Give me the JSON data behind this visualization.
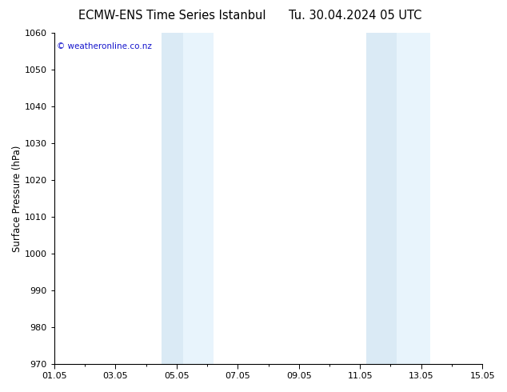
{
  "title_left": "ECMW-ENS Time Series Istanbul",
  "title_right": "Tu. 30.04.2024 05 UTC",
  "ylabel": "Surface Pressure (hPa)",
  "ylim": [
    970,
    1060
  ],
  "yticks": [
    970,
    980,
    990,
    1000,
    1010,
    1020,
    1030,
    1040,
    1050,
    1060
  ],
  "xmin_days": 0,
  "xmax_days": 14,
  "xtick_labels": [
    "01.05",
    "03.05",
    "05.05",
    "07.05",
    "09.05",
    "11.05",
    "13.05",
    "15.05"
  ],
  "xtick_positions": [
    0,
    2,
    4,
    6,
    8,
    10,
    12,
    14
  ],
  "shaded_regions": [
    {
      "xstart": 3.5,
      "xend": 4.2,
      "color": "#daeaf5"
    },
    {
      "xstart": 4.2,
      "xend": 5.2,
      "color": "#e8f4fc"
    },
    {
      "xstart": 10.2,
      "xend": 11.2,
      "color": "#daeaf5"
    },
    {
      "xstart": 11.2,
      "xend": 12.3,
      "color": "#e8f4fc"
    }
  ],
  "watermark": "© weatheronline.co.nz",
  "watermark_color": "#1515cc",
  "bg_color": "#ffffff",
  "plot_bg_color": "#ffffff",
  "title_fontsize": 10.5,
  "tick_fontsize": 8,
  "ylabel_fontsize": 8.5
}
